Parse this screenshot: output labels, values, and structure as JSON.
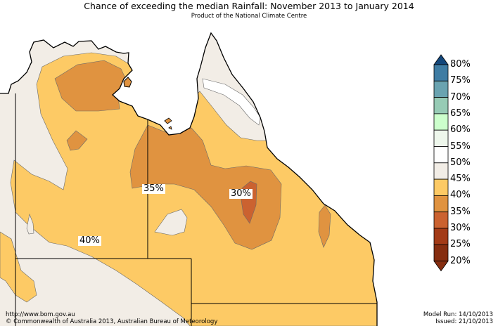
{
  "title": "Chance of exceeding the median Rainfall: November 2013 to January 2014",
  "subtitle": "Product of the National Climate Centre",
  "map_labels": [
    "35%",
    "30%",
    "40%"
  ],
  "legend": {
    "labels": [
      "80%",
      "75%",
      "70%",
      "65%",
      "60%",
      "55%",
      "50%",
      "45%",
      "40%",
      "35%",
      "30%",
      "25%",
      "20%"
    ],
    "colors": [
      "#13467a",
      "#3f7ca3",
      "#6aa3b0",
      "#97cbb5",
      "#ccffcc",
      "#eef7ec",
      "#ffffff",
      "#f2ede6",
      "#fdca65",
      "#e09340",
      "#cb6230",
      "#a33b17",
      "#862e10"
    ]
  },
  "footer": {
    "url": "http://www.bom.gov.au",
    "copyright": "©  Commonwealth of Australia 2013, Australian Bureau of Meteorology",
    "model_run": "Model Run: 14/10/2013",
    "issued": "Issued: 21/10/2013"
  }
}
